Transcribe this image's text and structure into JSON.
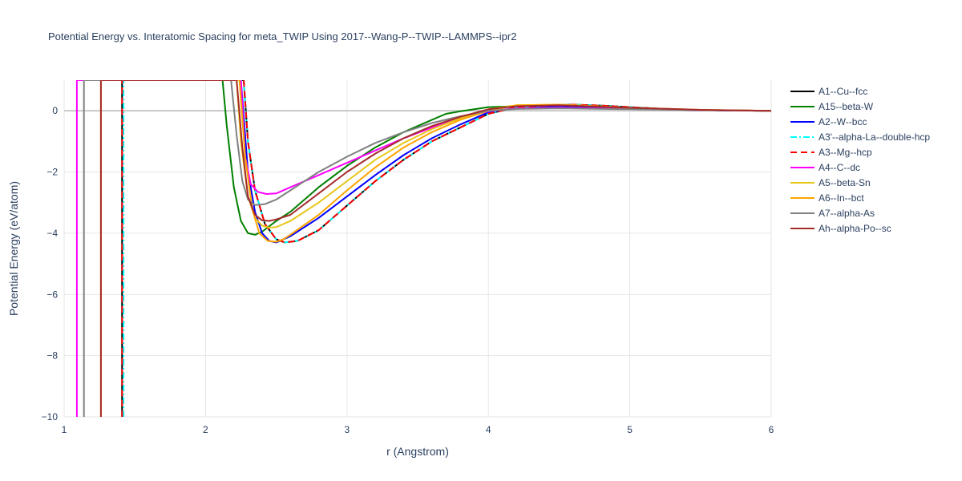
{
  "chart_data": {
    "type": "line",
    "title": "Potential Energy vs. Interatomic Spacing for meta_TWIP Using 2017--Wang-P--TWIP--LAMMPS--ipr2",
    "xlabel": "r (Angstrom)",
    "ylabel": "Potential Energy (eV/atom)",
    "xlim": [
      1,
      6
    ],
    "ylim": [
      -10,
      1
    ],
    "xticks": [
      1,
      2,
      3,
      4,
      5,
      6
    ],
    "yticks": [
      0,
      -2,
      -4,
      -6,
      -8,
      -10
    ],
    "ytick_labels": [
      "0",
      "−2",
      "−4",
      "−6",
      "−8",
      "−10"
    ],
    "grid": true,
    "legend_position": "right",
    "series": [
      {
        "name": "A1--Cu--fcc",
        "color": "#000000",
        "dash": "solid",
        "x": [
          1.41,
          1.41,
          2.27,
          2.3,
          2.35,
          2.42,
          2.5,
          2.56,
          2.65,
          2.8,
          3.0,
          3.2,
          3.4,
          3.6,
          3.8,
          4.0,
          4.2,
          4.4,
          4.6,
          4.8,
          5.0,
          5.2,
          5.5,
          6.0
        ],
        "y": [
          -10,
          1,
          1,
          -1.0,
          -2.6,
          -3.7,
          -4.2,
          -4.3,
          -4.25,
          -3.9,
          -3.1,
          -2.3,
          -1.6,
          -1.0,
          -0.55,
          -0.1,
          0.12,
          0.17,
          0.2,
          0.17,
          0.12,
          0.07,
          0.02,
          0
        ]
      },
      {
        "name": "A15--beta-W",
        "color": "#008000",
        "dash": "solid",
        "x": [
          2.12,
          2.15,
          2.2,
          2.25,
          2.3,
          2.35,
          2.4,
          2.5,
          2.6,
          2.8,
          3.0,
          3.2,
          3.4,
          3.6,
          3.7,
          3.8,
          3.9,
          4.0,
          4.2,
          4.5,
          5.0,
          5.5,
          6.0
        ],
        "y": [
          1,
          -0.5,
          -2.5,
          -3.6,
          -4.0,
          -4.05,
          -3.95,
          -3.6,
          -3.3,
          -2.5,
          -1.8,
          -1.2,
          -0.7,
          -0.3,
          -0.1,
          -0.02,
          0.05,
          0.12,
          0.15,
          0.12,
          0.06,
          0.02,
          0
        ]
      },
      {
        "name": "A2--W--bcc",
        "color": "#0000ff",
        "dash": "solid",
        "x": [
          2.25,
          2.3,
          2.35,
          2.4,
          2.45,
          2.5,
          2.6,
          2.8,
          3.0,
          3.2,
          3.4,
          3.6,
          3.8,
          4.0,
          4.2,
          4.5,
          5.0,
          5.5,
          6.0
        ],
        "y": [
          1,
          -2.0,
          -3.3,
          -4.0,
          -4.25,
          -4.3,
          -4.1,
          -3.5,
          -2.8,
          -2.1,
          -1.45,
          -0.9,
          -0.45,
          -0.05,
          0.1,
          0.13,
          0.07,
          0.02,
          0
        ]
      },
      {
        "name": "A3'--alpha-La--double-hcp",
        "color": "#00ffff",
        "dash": "dashdot",
        "x": [
          1.42,
          1.42,
          2.27,
          2.3,
          2.35,
          2.42,
          2.5,
          2.56,
          2.65,
          2.8,
          3.0,
          3.2,
          3.4,
          3.6,
          3.8,
          4.0,
          4.2,
          4.4,
          4.6,
          4.8,
          5.0,
          5.2,
          5.5,
          6.0
        ],
        "y": [
          -10,
          1,
          1,
          -1.0,
          -2.6,
          -3.7,
          -4.2,
          -4.3,
          -4.25,
          -3.9,
          -3.1,
          -2.3,
          -1.6,
          -1.0,
          -0.55,
          -0.1,
          0.12,
          0.17,
          0.2,
          0.17,
          0.12,
          0.07,
          0.02,
          0
        ]
      },
      {
        "name": "A3--Mg--hcp",
        "color": "#ff0000",
        "dash": "dash",
        "x": [
          1.41,
          1.41,
          2.27,
          2.3,
          2.35,
          2.42,
          2.5,
          2.56,
          2.65,
          2.8,
          3.0,
          3.2,
          3.4,
          3.6,
          3.8,
          4.0,
          4.2,
          4.4,
          4.6,
          4.8,
          5.0,
          5.2,
          5.5,
          6.0
        ],
        "y": [
          -10,
          1,
          1,
          -1.0,
          -2.6,
          -3.7,
          -4.2,
          -4.3,
          -4.25,
          -3.9,
          -3.1,
          -2.3,
          -1.6,
          -1.0,
          -0.55,
          -0.1,
          0.12,
          0.17,
          0.2,
          0.17,
          0.12,
          0.07,
          0.02,
          0
        ]
      },
      {
        "name": "A4--C--dc",
        "color": "#ff00ff",
        "dash": "solid",
        "x": [
          1.09,
          1.09,
          2.25,
          2.28,
          2.32,
          2.37,
          2.43,
          2.5,
          2.6,
          2.8,
          3.0,
          3.2,
          3.4,
          3.6,
          3.8,
          4.0,
          4.2,
          4.5,
          5.0,
          5.5,
          6.0
        ],
        "y": [
          -10,
          1,
          1,
          -1.5,
          -2.4,
          -2.65,
          -2.72,
          -2.7,
          -2.5,
          -2.1,
          -1.7,
          -1.3,
          -0.9,
          -0.55,
          -0.25,
          -0.02,
          0.08,
          0.1,
          0.06,
          0.02,
          0
        ]
      },
      {
        "name": "A5--beta-Sn",
        "color": "#e6c619",
        "dash": "solid",
        "x": [
          2.22,
          2.25,
          2.3,
          2.35,
          2.4,
          2.45,
          2.5,
          2.55,
          2.6,
          2.8,
          3.0,
          3.2,
          3.4,
          3.6,
          3.8,
          4.0,
          4.2,
          4.5,
          5.0,
          5.5,
          6.0
        ],
        "y": [
          1,
          -1.0,
          -2.8,
          -3.5,
          -3.75,
          -3.82,
          -3.8,
          -3.7,
          -3.6,
          -3.0,
          -2.3,
          -1.6,
          -1.05,
          -0.6,
          -0.25,
          0.05,
          0.18,
          0.2,
          0.1,
          0.03,
          0
        ]
      },
      {
        "name": "A6--In--bct",
        "color": "#ffa500",
        "dash": "solid",
        "x": [
          1.26,
          1.26,
          2.24,
          2.28,
          2.33,
          2.38,
          2.44,
          2.5,
          2.55,
          2.6,
          2.8,
          3.0,
          3.2,
          3.4,
          3.6,
          3.8,
          4.0,
          4.2,
          4.5,
          5.0,
          5.5,
          6.0
        ],
        "y": [
          -10,
          1,
          1,
          -1.5,
          -3.2,
          -4.0,
          -4.25,
          -4.28,
          -4.2,
          -4.05,
          -3.4,
          -2.6,
          -1.85,
          -1.2,
          -0.7,
          -0.3,
          0.0,
          0.18,
          0.2,
          0.1,
          0.03,
          0
        ]
      },
      {
        "name": "A7--alpha-As",
        "color": "#808080",
        "dash": "solid",
        "x": [
          1.14,
          1.14,
          2.18,
          2.22,
          2.26,
          2.3,
          2.35,
          2.42,
          2.5,
          2.6,
          2.8,
          3.0,
          3.2,
          3.4,
          3.6,
          3.8,
          4.0,
          4.2,
          4.5,
          5.0,
          5.5,
          6.0
        ],
        "y": [
          -10,
          1,
          1,
          -0.8,
          -2.3,
          -2.9,
          -3.08,
          -3.05,
          -2.9,
          -2.6,
          -2.0,
          -1.5,
          -1.05,
          -0.7,
          -0.4,
          -0.18,
          0.0,
          0.06,
          0.08,
          0.05,
          0.02,
          0
        ]
      },
      {
        "name": "Ah--alpha-Po--sc",
        "color": "#a52a2a",
        "dash": "solid",
        "x": [
          1.26,
          1.26,
          2.22,
          2.26,
          2.3,
          2.35,
          2.4,
          2.45,
          2.5,
          2.6,
          2.8,
          3.0,
          3.2,
          3.4,
          3.6,
          3.8,
          4.0,
          4.2,
          4.5,
          5.0,
          5.5,
          6.0
        ],
        "y": [
          -10,
          1,
          1,
          -1.2,
          -2.8,
          -3.4,
          -3.58,
          -3.6,
          -3.55,
          -3.4,
          -2.7,
          -2.0,
          -1.4,
          -0.9,
          -0.5,
          -0.2,
          0.05,
          0.15,
          0.18,
          0.1,
          0.03,
          0
        ]
      }
    ]
  }
}
